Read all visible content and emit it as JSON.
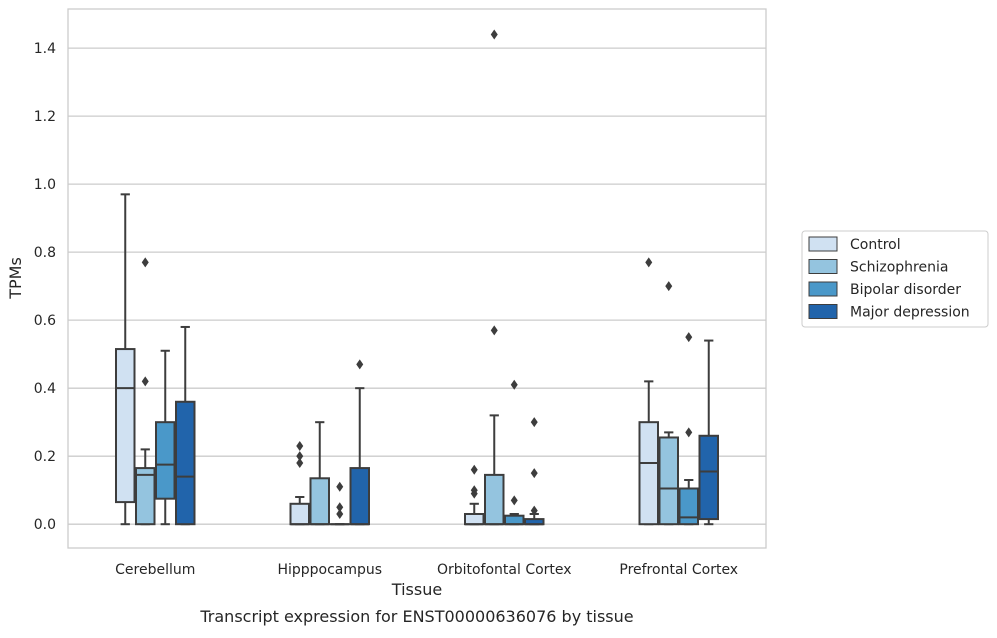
{
  "chart_data": {
    "type": "box",
    "title": "",
    "caption": "Transcript expression for ENST00000636076 by tissue",
    "xlabel": "Tissue",
    "ylabel": "TPMs",
    "ylim": [
      -0.07,
      1.515
    ],
    "yticks": [
      0.0,
      0.2,
      0.4,
      0.6,
      0.8,
      1.0,
      1.2,
      1.4
    ],
    "ytick_labels": [
      "0.0",
      "0.2",
      "0.4",
      "0.6",
      "0.8",
      "1.0",
      "1.2",
      "1.4"
    ],
    "grid": "horizontal",
    "legend_position": "right",
    "categories": [
      "Cerebellum",
      "Hipppocampus",
      "Orbitofontal Cortex",
      "Prefrontal Cortex"
    ],
    "series": [
      {
        "name": "Control",
        "color": "#d0e1f2",
        "boxes": [
          {
            "whislo": 0.0,
            "q1": 0.065,
            "med": 0.4,
            "q3": 0.515,
            "whishi": 0.97,
            "fliers": []
          },
          {
            "whislo": 0.0,
            "q1": 0.0,
            "med": 0.0,
            "q3": 0.06,
            "whishi": 0.08,
            "fliers": [
              0.18,
              0.2,
              0.23
            ]
          },
          {
            "whislo": 0.0,
            "q1": 0.0,
            "med": 0.0,
            "q3": 0.03,
            "whishi": 0.06,
            "fliers": [
              0.09,
              0.1,
              0.16
            ]
          },
          {
            "whislo": 0.0,
            "q1": 0.0,
            "med": 0.18,
            "q3": 0.3,
            "whishi": 0.42,
            "fliers": [
              0.77
            ]
          }
        ]
      },
      {
        "name": "Schizophrenia",
        "color": "#94c4df",
        "boxes": [
          {
            "whislo": 0.0,
            "q1": 0.0,
            "med": 0.145,
            "q3": 0.165,
            "whishi": 0.22,
            "fliers": [
              0.42,
              0.77
            ]
          },
          {
            "whislo": 0.0,
            "q1": 0.0,
            "med": 0.0,
            "q3": 0.135,
            "whishi": 0.3,
            "fliers": []
          },
          {
            "whislo": 0.0,
            "q1": 0.0,
            "med": 0.0,
            "q3": 0.145,
            "whishi": 0.32,
            "fliers": [
              0.57,
              1.44
            ]
          },
          {
            "whislo": 0.0,
            "q1": 0.0,
            "med": 0.105,
            "q3": 0.255,
            "whishi": 0.27,
            "fliers": [
              0.7
            ]
          }
        ]
      },
      {
        "name": "Bipolar disorder",
        "color": "#4a98c9",
        "boxes": [
          {
            "whislo": 0.0,
            "q1": 0.075,
            "med": 0.175,
            "q3": 0.3,
            "whishi": 0.51,
            "fliers": []
          },
          {
            "whislo": 0.0,
            "q1": 0.0,
            "med": 0.0,
            "q3": 0.0,
            "whishi": 0.0,
            "fliers": [
              0.03,
              0.05,
              0.11
            ]
          },
          {
            "whislo": 0.0,
            "q1": 0.0,
            "med": 0.0,
            "q3": 0.025,
            "whishi": 0.03,
            "fliers": [
              0.07,
              0.41
            ]
          },
          {
            "whislo": 0.0,
            "q1": 0.0,
            "med": 0.02,
            "q3": 0.105,
            "whishi": 0.13,
            "fliers": [
              0.27,
              0.55
            ]
          }
        ]
      },
      {
        "name": "Major depression",
        "color": "#2164ab",
        "boxes": [
          {
            "whislo": 0.0,
            "q1": 0.0,
            "med": 0.14,
            "q3": 0.36,
            "whishi": 0.58,
            "fliers": []
          },
          {
            "whislo": 0.0,
            "q1": 0.0,
            "med": 0.0,
            "q3": 0.165,
            "whishi": 0.4,
            "fliers": [
              0.47
            ]
          },
          {
            "whislo": 0.0,
            "q1": 0.0,
            "med": 0.0,
            "q3": 0.015,
            "whishi": 0.03,
            "fliers": [
              0.04,
              0.15,
              0.3
            ]
          },
          {
            "whislo": 0.0,
            "q1": 0.015,
            "med": 0.155,
            "q3": 0.26,
            "whishi": 0.54,
            "fliers": []
          }
        ]
      }
    ]
  }
}
